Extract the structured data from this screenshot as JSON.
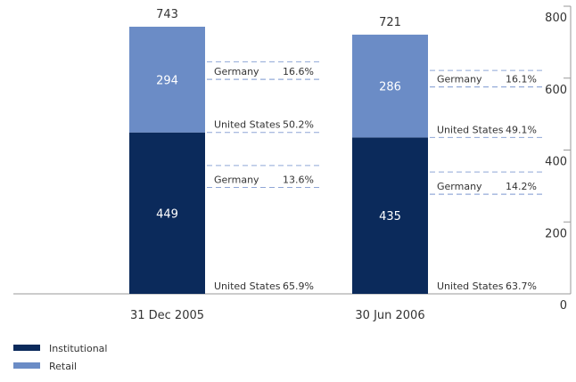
{
  "chart_data": {
    "type": "bar",
    "stacked": true,
    "categories": [
      "31 Dec 2005",
      "30 Jun 2006"
    ],
    "series": [
      {
        "name": "Institutional",
        "color": "#0b2a5b",
        "values": [
          449,
          435
        ]
      },
      {
        "name": "Retail",
        "color": "#6b8cc6",
        "values": [
          294,
          286
        ]
      }
    ],
    "totals": [
      743,
      721
    ],
    "breakdowns": [
      [
        [
          {
            "name": "United States",
            "value": 65.9,
            "label": "65.9%"
          },
          {
            "name": "Germany",
            "value": 13.6,
            "label": "13.6%"
          }
        ],
        [
          {
            "name": "United States",
            "value": 50.2,
            "label": "50.2%"
          },
          {
            "name": "Germany",
            "value": 16.6,
            "label": "16.6%"
          }
        ]
      ],
      [
        [
          {
            "name": "United States",
            "value": 63.7,
            "label": "63.7%"
          },
          {
            "name": "Germany",
            "value": 14.2,
            "label": "14.2%"
          }
        ],
        [
          {
            "name": "United States",
            "value": 49.1,
            "label": "49.1%"
          },
          {
            "name": "Germany",
            "value": 16.1,
            "label": "16.1%"
          }
        ]
      ]
    ],
    "ylim": [
      0,
      800
    ],
    "yticks": [
      0,
      200,
      400,
      600,
      800
    ],
    "y_axis_side": "right"
  }
}
